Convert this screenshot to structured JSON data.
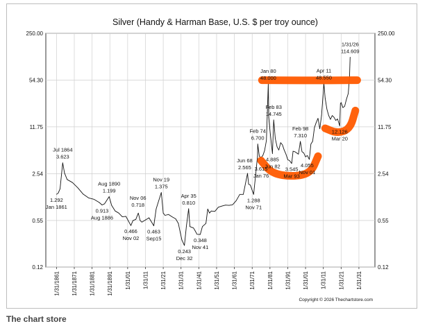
{
  "caption": "The chart store",
  "chart_data": {
    "type": "line",
    "title": "Silver (Handy & Harman Base, U.S. $ per troy ounce)",
    "copyright": "Copyright © 2026 Thechartstore.com",
    "y_scale": "log",
    "ylim": [
      0.12,
      250
    ],
    "y_ticks": [
      {
        "value": 250,
        "label": "250.00"
      },
      {
        "value": 54.3,
        "label": "54.30"
      },
      {
        "value": 11.75,
        "label": "11.75"
      },
      {
        "value": 2.54,
        "label": "2.54"
      },
      {
        "value": 0.55,
        "label": "0.55"
      },
      {
        "value": 0.12,
        "label": "0.12"
      }
    ],
    "xlim": [
      1855,
      2040
    ],
    "x_ticks": [
      "1/31/1861",
      "1/31/1871",
      "1/31/1881",
      "1/31/1891",
      "1/31/01",
      "1/31/11",
      "1/31/21",
      "1/31/31",
      "1/31/41",
      "1/31/51",
      "1/31/61",
      "1/31/71",
      "1/31/81",
      "1/31/91",
      "1/31/01",
      "1/31/11",
      "1/31/21",
      "1/31/31"
    ],
    "x_tick_years": [
      1861,
      1871,
      1881,
      1891,
      1901,
      1911,
      1921,
      1931,
      1941,
      1951,
      1961,
      1971,
      1981,
      1991,
      2001,
      2011,
      2021,
      2031
    ],
    "grid": true,
    "series": [
      {
        "x": [
          1861.0,
          1862.0,
          1863.0,
          1864.5,
          1865.5,
          1867,
          1870,
          1873,
          1876,
          1879,
          1882,
          1885,
          1886.6,
          1888,
          1890.6,
          1892,
          1894,
          1896,
          1898,
          1900,
          1902.8,
          1904,
          1905.6,
          1907,
          1908,
          1909,
          1911,
          1913,
          1915.7,
          1917,
          1919.9,
          1921,
          1922,
          1924,
          1926,
          1928,
          1929.5,
          1930.5,
          1931.5,
          1932.9,
          1934,
          1935.3,
          1936,
          1938,
          1939,
          1940,
          1941.8,
          1943,
          1945,
          1946,
          1947,
          1948,
          1950,
          1952,
          1954,
          1956,
          1958,
          1960,
          1962,
          1964,
          1966,
          1968.4,
          1969,
          1970,
          1971.8,
          1973,
          1974,
          1974.1,
          1975,
          1976,
          1977,
          1978,
          1979,
          1980.05,
          1980.3,
          1981,
          1982.4,
          1983.1,
          1984,
          1985,
          1986,
          1987,
          1988,
          1989,
          1990,
          1991,
          1992,
          1993.2,
          1994,
          1995,
          1996,
          1997,
          1998.1,
          1999,
          2000,
          2001,
          2002,
          2003.1,
          2004,
          2005,
          2006,
          2007,
          2008,
          2009,
          2010,
          2011.3,
          2012,
          2013,
          2014,
          2015,
          2016,
          2017,
          2018,
          2019,
          2020.2,
          2020.6,
          2021,
          2022,
          2023,
          2024,
          2025,
          2025.7,
          2026.08
        ],
        "y": [
          1.292,
          1.35,
          1.55,
          3.623,
          2.6,
          2.1,
          1.9,
          1.6,
          1.3,
          1.15,
          1.1,
          0.99,
          0.913,
          0.95,
          1.199,
          0.9,
          0.75,
          0.7,
          0.62,
          0.63,
          0.466,
          0.55,
          0.57,
          0.7,
          0.55,
          0.52,
          0.56,
          0.6,
          0.463,
          0.8,
          1.375,
          0.7,
          0.65,
          0.67,
          0.62,
          0.58,
          0.5,
          0.38,
          0.29,
          0.243,
          0.45,
          0.81,
          0.45,
          0.43,
          0.39,
          0.35,
          0.348,
          0.45,
          0.5,
          0.8,
          0.7,
          0.75,
          0.74,
          0.85,
          0.88,
          0.91,
          0.9,
          0.92,
          1.05,
          1.29,
          1.29,
          2.565,
          1.8,
          1.75,
          1.288,
          2.5,
          4.5,
          6.7,
          4.5,
          4.3,
          4.6,
          5.4,
          7.5,
          48.0,
          16.0,
          10.5,
          4.885,
          14.745,
          8.0,
          6.1,
          5.5,
          7.0,
          6.5,
          5.5,
          4.8,
          4.0,
          3.9,
          3.545,
          5.3,
          5.2,
          5.0,
          4.8,
          7.31,
          5.2,
          5.0,
          4.4,
          4.6,
          4.055,
          6.7,
          7.3,
          11.5,
          13.5,
          15.5,
          11.0,
          17.0,
          48.55,
          30.0,
          21.0,
          17.0,
          15.0,
          17.0,
          16.0,
          14.5,
          15.2,
          12.126,
          25.0,
          26.0,
          22.0,
          23.0,
          29.0,
          35.0,
          60.0,
          114.609
        ],
        "color": "#111111"
      }
    ],
    "annotations": [
      {
        "lines": [
          "Jul 1864",
          "3.623"
        ],
        "x": 1864.5,
        "y": 3.623,
        "pos": "above"
      },
      {
        "lines": [
          "1.292",
          "Jan 1861"
        ],
        "x": 1861.0,
        "y": 1.292,
        "pos": "below"
      },
      {
        "lines": [
          "Aug 1890",
          "1.199"
        ],
        "x": 1890.6,
        "y": 1.199,
        "pos": "above"
      },
      {
        "lines": [
          "0.913",
          "Aug 1886"
        ],
        "x": 1886.6,
        "y": 0.913,
        "pos": "below"
      },
      {
        "lines": [
          "Nov 06",
          "0.718"
        ],
        "x": 1906.8,
        "y": 0.75,
        "pos": "above"
      },
      {
        "lines": [
          "0.466",
          "Nov 02"
        ],
        "x": 1902.8,
        "y": 0.466,
        "pos": "below"
      },
      {
        "lines": [
          "0.463",
          "Sep15"
        ],
        "x": 1915.7,
        "y": 0.463,
        "pos": "below"
      },
      {
        "lines": [
          "Nov 19",
          "1.375"
        ],
        "x": 1919.9,
        "y": 1.375,
        "pos": "above"
      },
      {
        "lines": [
          "Apr 35",
          "0.810"
        ],
        "x": 1935.3,
        "y": 0.81,
        "pos": "above"
      },
      {
        "lines": [
          "0.243",
          "Dec 32"
        ],
        "x": 1932.9,
        "y": 0.243,
        "pos": "below"
      },
      {
        "lines": [
          "0.348",
          "Nov 41"
        ],
        "x": 1941.8,
        "y": 0.348,
        "pos": "below"
      },
      {
        "lines": [
          "Jun 68",
          "2.565"
        ],
        "x": 1966.8,
        "y": 2.565,
        "pos": "above"
      },
      {
        "lines": [
          "1.288",
          "Nov 71"
        ],
        "x": 1971.8,
        "y": 1.288,
        "pos": "below"
      },
      {
        "lines": [
          "Feb 74",
          "6.700"
        ],
        "x": 1974.1,
        "y": 6.7,
        "pos": "above"
      },
      {
        "lines": [
          "3.615",
          "Jan 76"
        ],
        "x": 1976.0,
        "y": 3.615,
        "pos": "below"
      },
      {
        "lines": [
          "Jan 80",
          "48.000"
        ],
        "x": 1980.05,
        "y": 48.0,
        "pos": "above"
      },
      {
        "lines": [
          "Feb 83",
          "14.745"
        ],
        "x": 1983.1,
        "y": 14.745,
        "pos": "above"
      },
      {
        "lines": [
          "4.885",
          "Jun 82"
        ],
        "x": 1982.4,
        "y": 4.885,
        "pos": "below"
      },
      {
        "lines": [
          "Feb 98",
          "7.310"
        ],
        "x": 1998.1,
        "y": 7.31,
        "pos": "above"
      },
      {
        "lines": [
          "3.545",
          "Mar 93"
        ],
        "x": 1993.2,
        "y": 3.545,
        "pos": "below"
      },
      {
        "lines": [
          "4.055",
          "Nov 01"
        ],
        "x": 2001.9,
        "y": 4.055,
        "pos": "below"
      },
      {
        "lines": [
          "Apr 11",
          "48.550"
        ],
        "x": 2011.3,
        "y": 48.55,
        "pos": "above"
      },
      {
        "lines": [
          "12.126",
          "Mar 20"
        ],
        "x": 2020.2,
        "y": 12.126,
        "pos": "below"
      },
      {
        "lines": [
          "1/31/26",
          "114.609"
        ],
        "x": 2026.08,
        "y": 114.609,
        "pos": "above"
      }
    ],
    "highlights": [
      {
        "name": "resistance-band",
        "color": "#ff5a00",
        "points": [
          [
            1976.5,
            54.0
          ],
          [
            1995,
            53.8
          ],
          [
            2012,
            53.5
          ],
          [
            2030,
            54.0
          ]
        ]
      },
      {
        "name": "support-arc-1",
        "color": "#ff5a00",
        "points": [
          [
            1976,
            3.9
          ],
          [
            1982,
            2.55
          ],
          [
            1994,
            2.3
          ],
          [
            2004,
            2.6
          ],
          [
            2008,
            4.5
          ]
        ]
      },
      {
        "name": "support-arc-2",
        "color": "#ff5a00",
        "points": [
          [
            2012,
            11.2
          ],
          [
            2019,
            9.5
          ],
          [
            2026,
            11.0
          ],
          [
            2029,
            20.0
          ]
        ]
      }
    ]
  }
}
